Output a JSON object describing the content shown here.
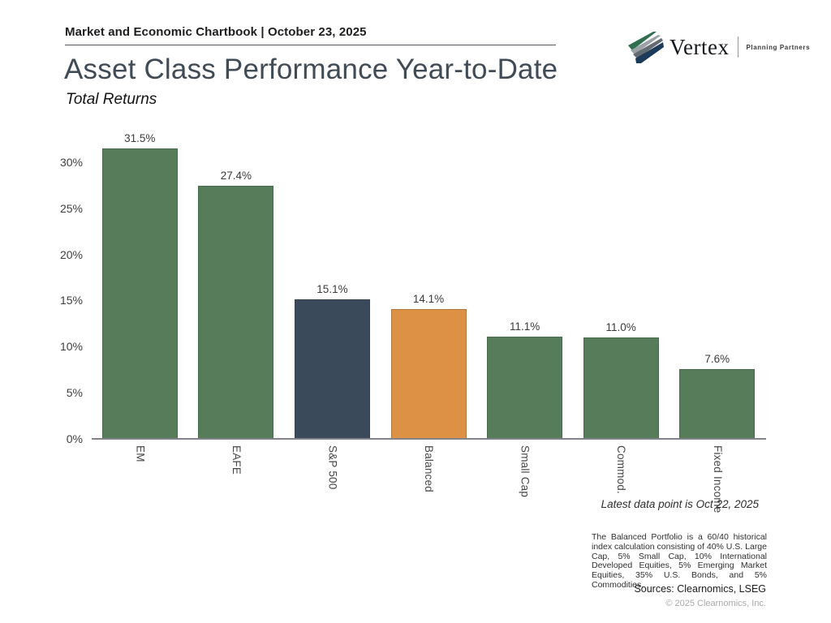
{
  "header": {
    "kicker": "Market and Economic Chartbook | October 23, 2025",
    "logo": {
      "name": "Vertex",
      "tagline": "Planning Partners"
    }
  },
  "title": "Asset Class Performance Year-to-Date",
  "subtitle": "Total Returns",
  "chart_data": {
    "type": "bar",
    "title": "Asset Class Performance Year-to-Date",
    "subtitle": "Total Returns",
    "categories": [
      "EM",
      "EAFE",
      "S&P 500",
      "Balanced",
      "Small Cap",
      "Commod.",
      "Fixed Income"
    ],
    "values": [
      31.5,
      27.4,
      15.1,
      14.1,
      11.1,
      11.0,
      7.6
    ],
    "value_labels": [
      "31.5%",
      "27.4%",
      "15.1%",
      "14.1%",
      "11.1%",
      "11.0%",
      "7.6%"
    ],
    "bar_colors": [
      "#567c5a",
      "#567c5a",
      "#3b4a5a",
      "#dd9144",
      "#567c5a",
      "#567c5a",
      "#567c5a"
    ],
    "xlabel": "",
    "ylabel": "",
    "ylim": [
      0,
      33.5
    ],
    "yticks": [
      0,
      5,
      10,
      15,
      20,
      25,
      30
    ],
    "ytick_labels": [
      "0%",
      "5%",
      "10%",
      "15%",
      "20%",
      "25%",
      "30%"
    ],
    "grid": false,
    "legend": "none",
    "x_label_rotation": "vertical-top-to-bottom"
  },
  "footer": {
    "latest_note": "Latest data point is Oct 22, 2025",
    "balanced_note": "The Balanced Portfolio is a 60/40 historical index calculation consisting of 40% U.S. Large Cap, 5% Small Cap, 10% International Developed Equities, 5% Emerging Market Equities, 35% U.S. Bonds, and 5% Commodities.",
    "sources": "Sources: Clearnomics, LSEG",
    "copyright": "© 2025 Clearnomics, Inc."
  },
  "colors": {
    "green": "#567c5a",
    "navy": "#3b4a5a",
    "orange": "#dd9144",
    "title_text": "#414b55",
    "axis_line": "#808488"
  }
}
